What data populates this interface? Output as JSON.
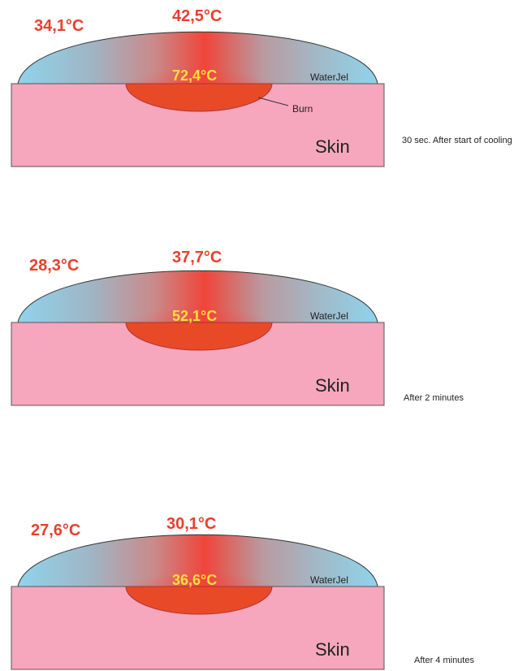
{
  "panels": [
    {
      "edge_temp": "34,1°C",
      "top_temp": "42,5°C",
      "burn_temp": "72,4°C",
      "gel_label": "WaterJel",
      "burn_label": "Burn",
      "skin_label": "Skin",
      "caption": "30 sec. After start of cooling"
    },
    {
      "edge_temp": "28,3°C",
      "top_temp": "37,7°C",
      "burn_temp": "52,1°C",
      "gel_label": "WaterJel",
      "skin_label": "Skin",
      "caption": "After 2 minutes"
    },
    {
      "edge_temp": "27,6°C",
      "top_temp": "30,1°C",
      "burn_temp": "36,6°C",
      "gel_label": "WaterJel",
      "skin_label": "Skin",
      "caption": "After 4 minutes"
    }
  ]
}
